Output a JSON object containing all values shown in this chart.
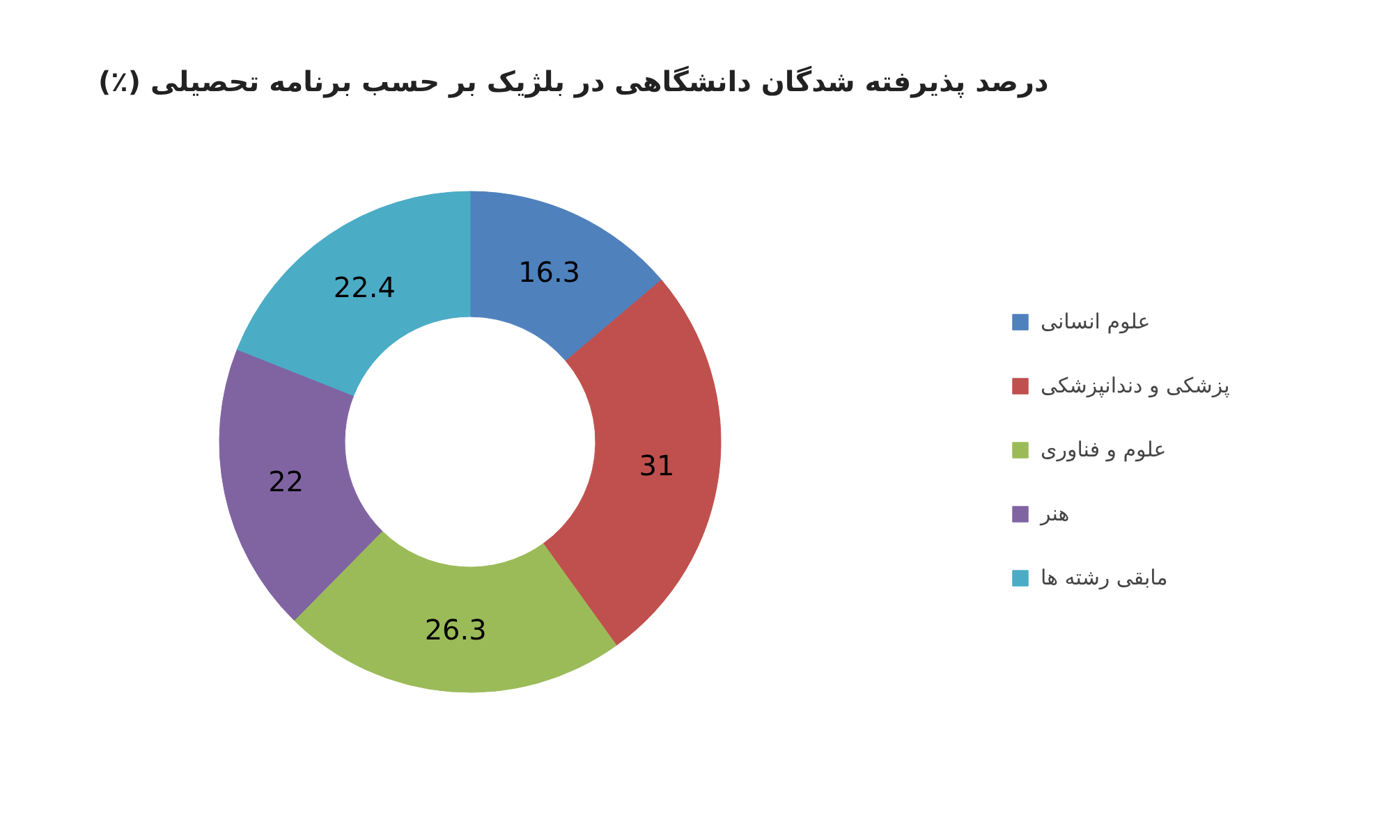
{
  "chart_data": {
    "type": "donut",
    "title": "درصد پذیرفته شدگان دانشگاهی در بلژیک بر حسب برنامه تحصیلی (٪)",
    "categories": [
      "علوم انسانی",
      "پزشکی و دندانپزشکی",
      "علوم و فناوری",
      "هنر",
      "مابقی رشته ها"
    ],
    "values": [
      16.3,
      31,
      26.3,
      22,
      22.4
    ],
    "colors": [
      "#4f81bd",
      "#c0504d",
      "#9bbb59",
      "#8064a2",
      "#4bacc6"
    ],
    "data_labels": true,
    "legend": "right"
  }
}
